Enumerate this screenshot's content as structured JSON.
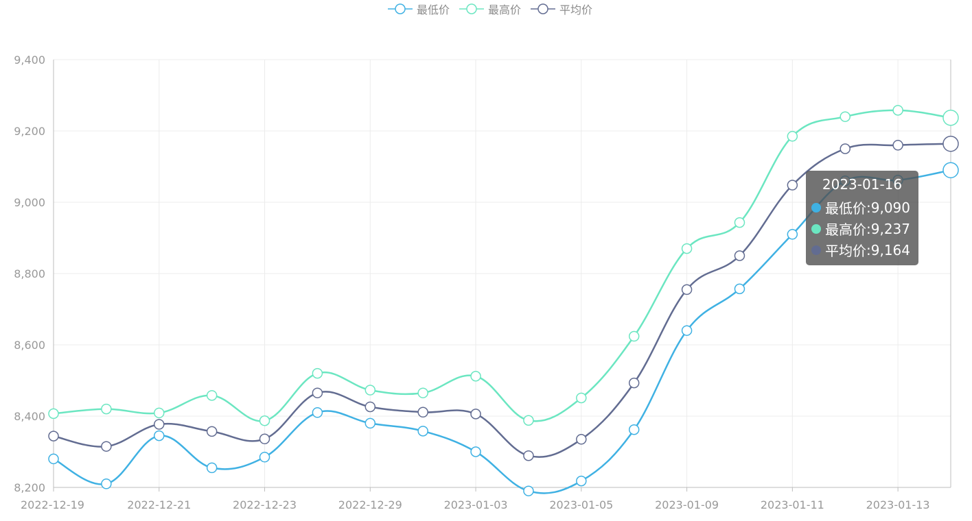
{
  "legend": {
    "items": [
      {
        "label": "最低价",
        "color": "#3fb1e3"
      },
      {
        "label": "最高价",
        "color": "#6be6c1"
      },
      {
        "label": "平均价",
        "color": "#626c91"
      }
    ]
  },
  "tooltip": {
    "title": "2023-01-16",
    "rows": [
      {
        "label": "最低价",
        "value": "9,090",
        "color": "#3fb1e3"
      },
      {
        "label": "最高价",
        "value": "9,237",
        "color": "#6be6c1"
      },
      {
        "label": "平均价",
        "value": "9,164",
        "color": "#626c91"
      }
    ]
  },
  "chart_data": {
    "type": "line",
    "x": [
      "2022-12-19",
      "2022-12-20",
      "2022-12-21",
      "2022-12-22",
      "2022-12-23",
      "2022-12-28",
      "2022-12-29",
      "2022-12-30",
      "2023-01-03",
      "2023-01-04",
      "2023-01-05",
      "2023-01-06",
      "2023-01-09",
      "2023-01-10",
      "2023-01-11",
      "2023-01-12",
      "2023-01-13",
      "2023-01-16"
    ],
    "x_tick_labels": [
      "2022-12-19",
      "2022-12-21",
      "2022-12-23",
      "2022-12-29",
      "2023-01-03",
      "2023-01-05",
      "2023-01-09",
      "2023-01-11",
      "2023-01-13"
    ],
    "y_ticks": [
      "8,200",
      "8,400",
      "8,600",
      "8,800",
      "9,000",
      "9,200",
      "9,400"
    ],
    "ylim": [
      8200,
      9400
    ],
    "grid": true,
    "legend_position": "top-center",
    "smooth": true,
    "series": [
      {
        "name": "最低价",
        "color": "#3fb1e3",
        "values": [
          8280,
          8210,
          8345,
          8255,
          8285,
          8410,
          8380,
          8358,
          8300,
          8190,
          8218,
          8362,
          8640,
          8757,
          8910,
          9060,
          9062,
          9090
        ]
      },
      {
        "name": "最高价",
        "color": "#6be6c1",
        "values": [
          8407,
          8420,
          8409,
          8458,
          8387,
          8520,
          8473,
          8465,
          8512,
          8388,
          8451,
          8624,
          8870,
          8943,
          9185,
          9240,
          9258,
          9237
        ]
      },
      {
        "name": "平均价",
        "color": "#626c91",
        "values": [
          8344,
          8315,
          8377,
          8357,
          8336,
          8465,
          8426,
          8411,
          8406,
          8289,
          8335,
          8493,
          8755,
          8850,
          9048,
          9150,
          9160,
          9164
        ]
      }
    ]
  }
}
